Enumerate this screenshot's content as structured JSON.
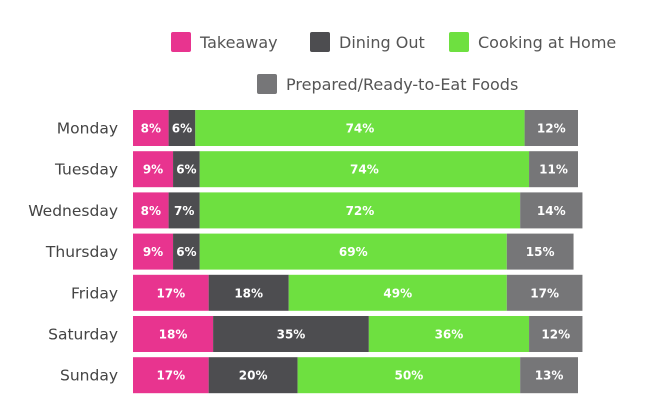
{
  "chart_data": {
    "type": "bar",
    "orientation": "horizontal",
    "stacked": true,
    "categories": [
      "Monday",
      "Tuesday",
      "Wednesday",
      "Thursday",
      "Friday",
      "Saturday",
      "Sunday"
    ],
    "series": [
      {
        "name": "Takeaway",
        "color": "#e8348f",
        "values": [
          8,
          9,
          8,
          9,
          17,
          18,
          17
        ]
      },
      {
        "name": "Dining Out",
        "color": "#4d4d50",
        "values": [
          6,
          6,
          7,
          6,
          18,
          35,
          20
        ]
      },
      {
        "name": "Cooking at Home",
        "color": "#6ee040",
        "values": [
          74,
          74,
          72,
          69,
          49,
          36,
          50
        ]
      },
      {
        "name": "Prepared/Ready-to-Eat Foods",
        "color": "#767678",
        "values": [
          12,
          11,
          14,
          15,
          17,
          12,
          13
        ]
      }
    ],
    "value_suffix": "%",
    "legend_position": "top",
    "grid": false
  }
}
